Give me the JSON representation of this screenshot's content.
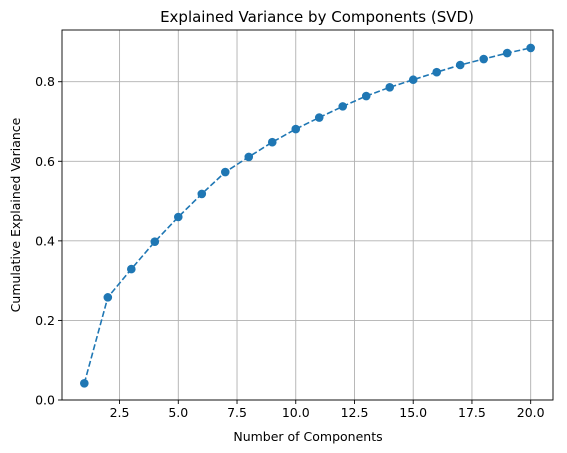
{
  "chart_data": {
    "type": "line",
    "title": "Explained Variance by Components (SVD)",
    "xlabel": "Number of Components",
    "ylabel": "Cumulative Explained Variance",
    "xlim": [
      0.05,
      20.95
    ],
    "ylim": [
      0,
      0.93
    ],
    "xticks": [
      2.5,
      5.0,
      7.5,
      10.0,
      12.5,
      15.0,
      17.5,
      20.0
    ],
    "xtick_labels": [
      "2.5",
      "5.0",
      "7.5",
      "10.0",
      "12.5",
      "15.0",
      "17.5",
      "20.0"
    ],
    "yticks": [
      0.0,
      0.2,
      0.4,
      0.6,
      0.8
    ],
    "ytick_labels": [
      "0.0",
      "0.2",
      "0.4",
      "0.6",
      "0.8"
    ],
    "grid": true,
    "line_style": "dashed",
    "marker": "circle",
    "color": "#1f77b4",
    "series": [
      {
        "x": [
          1,
          2,
          3,
          4,
          5,
          6,
          7,
          8,
          9,
          10,
          11,
          12,
          13,
          14,
          15,
          16,
          17,
          18,
          19,
          20
        ],
        "values": [
          0.042,
          0.258,
          0.329,
          0.398,
          0.46,
          0.518,
          0.573,
          0.611,
          0.648,
          0.681,
          0.71,
          0.738,
          0.764,
          0.786,
          0.805,
          0.824,
          0.842,
          0.857,
          0.872,
          0.885
        ]
      }
    ]
  }
}
